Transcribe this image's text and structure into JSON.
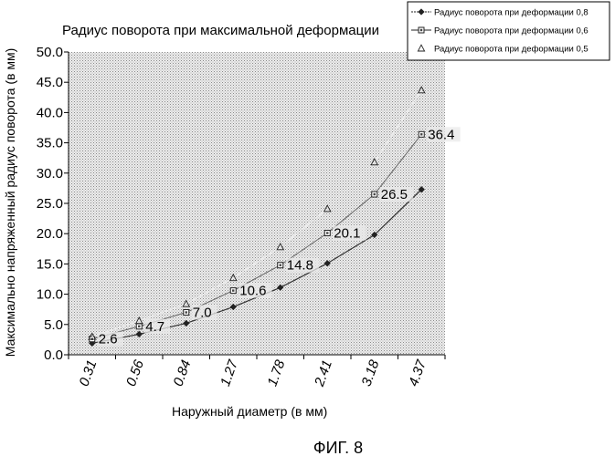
{
  "chart_data": {
    "type": "line",
    "title": "Радиус поворота при максимальной деформации",
    "xlabel": "Наружный диаметр (в мм)",
    "ylabel": "Максимально напряженный радиус поворота (в мм)",
    "categories": [
      "0.31",
      "0.56",
      "0.84",
      "1.27",
      "1.78",
      "2.41",
      "3.18",
      "4.37"
    ],
    "ylim": [
      0,
      50
    ],
    "yticks": [
      "0.0",
      "5.0",
      "10.0",
      "15.0",
      "20.0",
      "25.0",
      "30.0",
      "35.0",
      "40.0",
      "45.0",
      "50.0"
    ],
    "series": [
      {
        "name": "Радиус поворота при деформации 0,8",
        "marker": "diamond",
        "line_color": "#333333",
        "values": [
          1.9,
          3.4,
          5.2,
          7.9,
          11.1,
          15.1,
          19.8,
          27.3
        ]
      },
      {
        "name": "Радиус поворота при деформации 0,6",
        "marker": "square",
        "line_color": "#666666",
        "values": [
          2.6,
          4.7,
          7.0,
          10.6,
          14.8,
          20.1,
          26.5,
          36.4
        ]
      },
      {
        "name": "Радиус поворота при деформации 0,5",
        "marker": "triangle",
        "line_color": "#eeeeee",
        "values": [
          3.0,
          5.6,
          8.4,
          12.7,
          17.8,
          24.1,
          31.8,
          43.7
        ]
      }
    ],
    "data_labels": {
      "series_index": 1,
      "labels": [
        "2.6",
        "4.7",
        "7.0",
        "10.6",
        "14.8",
        "20.1",
        "26.5",
        "36.4"
      ]
    },
    "grid": false,
    "legend_position": "top-right",
    "plot_background": "#d9d9d9"
  },
  "figure_caption": "ФИГ. 8"
}
